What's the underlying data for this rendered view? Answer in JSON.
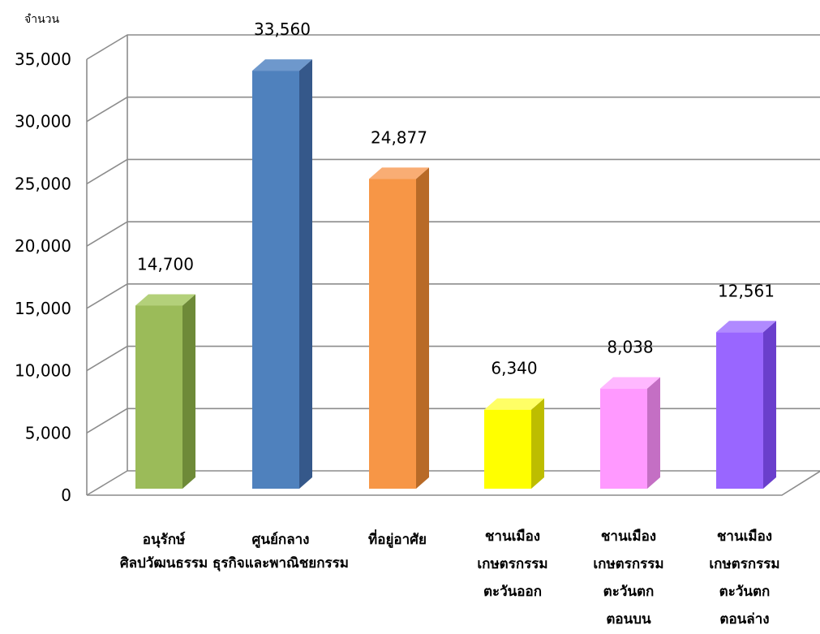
{
  "chart_data": {
    "type": "bar",
    "title": "",
    "ylabel": "จำนวน",
    "xlabel": "",
    "ylim": [
      0,
      35000
    ],
    "yticks": [
      0,
      5000,
      10000,
      15000,
      20000,
      25000,
      30000,
      35000
    ],
    "ytick_labels": [
      "0",
      "5,000",
      "10,000",
      "15,000",
      "20,000",
      "25,000",
      "30,000",
      "35,000"
    ],
    "grid": true,
    "legend": "none",
    "categories": [
      [
        "อนุรักษ์",
        "ศิลปวัฒนธรรม"
      ],
      [
        "ศูนย์กลาง",
        "ธุรกิจและพาณิชยกรรม"
      ],
      [
        "ที่อยู่อาศัย"
      ],
      [
        "ชานเมือง",
        "เกษตรกรรม",
        "ตะวันออก"
      ],
      [
        "ชานเมือง",
        "เกษตรกรรม",
        "ตะวันตก",
        "ตอนบน"
      ],
      [
        "ชานเมือง",
        "เกษตรกรรม",
        "ตะวันตก",
        "ตอนล่าง"
      ]
    ],
    "values": [
      14700,
      33560,
      24877,
      6340,
      8038,
      12561
    ],
    "data_labels": [
      "14,700",
      "33,560",
      "24,877",
      "6,340",
      "8,038",
      "12,561"
    ],
    "colors": [
      "#9bbb59",
      "#4f81bd",
      "#f79646",
      "#ffff00",
      "#ff99ff",
      "#9966ff"
    ],
    "side_colors": [
      "#6e8a38",
      "#35588a",
      "#b86a27",
      "#bdbd00",
      "#c46fc4",
      "#6a3fcc"
    ],
    "top_colors": [
      "#b3d07a",
      "#6e98cc",
      "#f9ad74",
      "#ffff66",
      "#ffb8ff",
      "#b08aff"
    ]
  }
}
